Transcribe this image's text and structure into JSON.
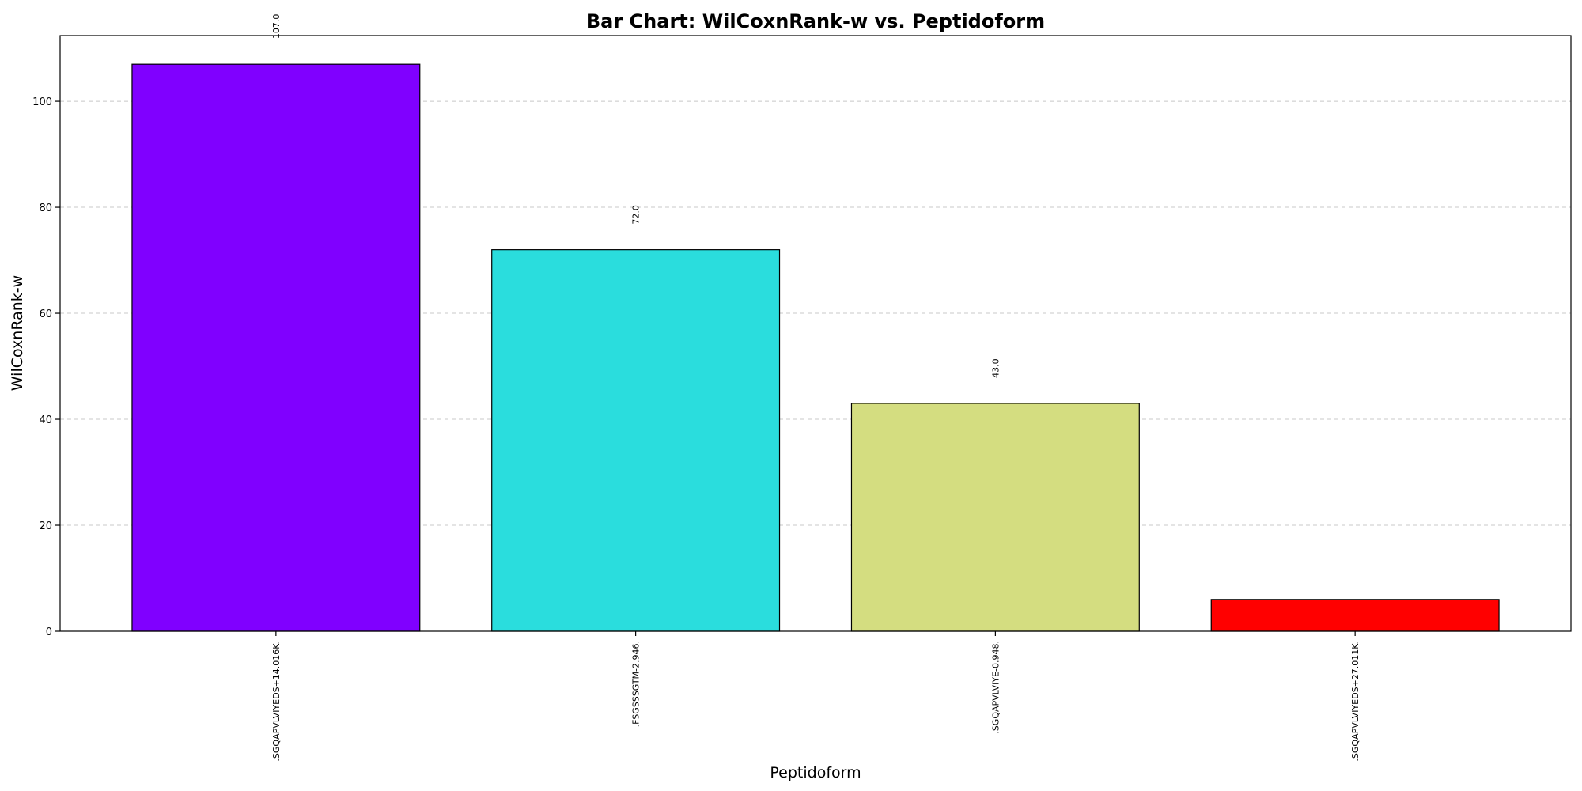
{
  "chart_data": {
    "type": "bar",
    "title": "Bar Chart: WilCoxnRank-w vs. Peptidoform",
    "xlabel": "Peptidoform",
    "ylabel": "WilCoxnRank-w",
    "categories": [
      ".SGQAPVLVIYEDS+14.016K.",
      ".FSGSSSGTM-2.946.",
      ".SGQAPVLVIYE-0.948.",
      ".SGQAPVLVIYEDS+27.011K."
    ],
    "values": [
      107.0,
      72.0,
      43.0,
      6.0
    ],
    "data_labels": [
      "107.0",
      "72.0",
      "43.0",
      ""
    ],
    "colors": [
      "#8000ff",
      "#2adddd",
      "#d4dd80",
      "#ff0000"
    ],
    "ylim": [
      0,
      112.4
    ],
    "yticks": [
      0,
      20,
      40,
      60,
      80,
      100
    ],
    "grid": "y-dashed",
    "legend": "none"
  }
}
